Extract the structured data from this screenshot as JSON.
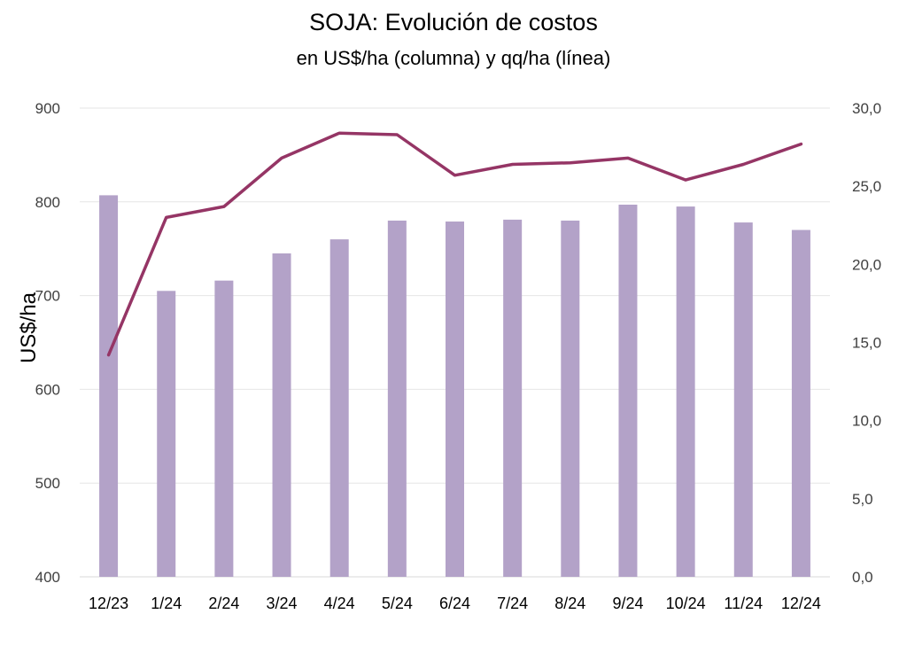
{
  "chart_data": {
    "type": "bar",
    "title": "SOJA: Evolución de costos",
    "subtitle": "en US$/ha (columna) y qq/ha (línea)",
    "ylabel": "US$/ha",
    "y2label": "",
    "categories": [
      "12/23",
      "1/24",
      "2/24",
      "3/24",
      "4/24",
      "5/24",
      "6/24",
      "7/24",
      "8/24",
      "9/24",
      "10/24",
      "11/24",
      "12/24"
    ],
    "ylim": [
      400,
      900
    ],
    "y_ticks": [
      "400",
      "500",
      "600",
      "700",
      "800",
      "900"
    ],
    "y2lim": [
      0,
      30
    ],
    "y2_ticks": [
      "0,0",
      "5,0",
      "10,0",
      "15,0",
      "20,0",
      "25,0",
      "30,0"
    ],
    "grid": true,
    "series": [
      {
        "type": "bar",
        "axis": "left",
        "color": "#b3a2c8",
        "values": [
          807,
          705,
          716,
          745,
          760,
          780,
          779,
          781,
          780,
          797,
          795,
          778,
          770
        ]
      },
      {
        "type": "line",
        "axis": "right",
        "color": "#953565",
        "values": [
          14.2,
          23.0,
          23.7,
          26.8,
          28.4,
          28.3,
          25.7,
          26.4,
          26.5,
          26.8,
          25.4,
          26.4,
          27.7
        ]
      }
    ]
  }
}
